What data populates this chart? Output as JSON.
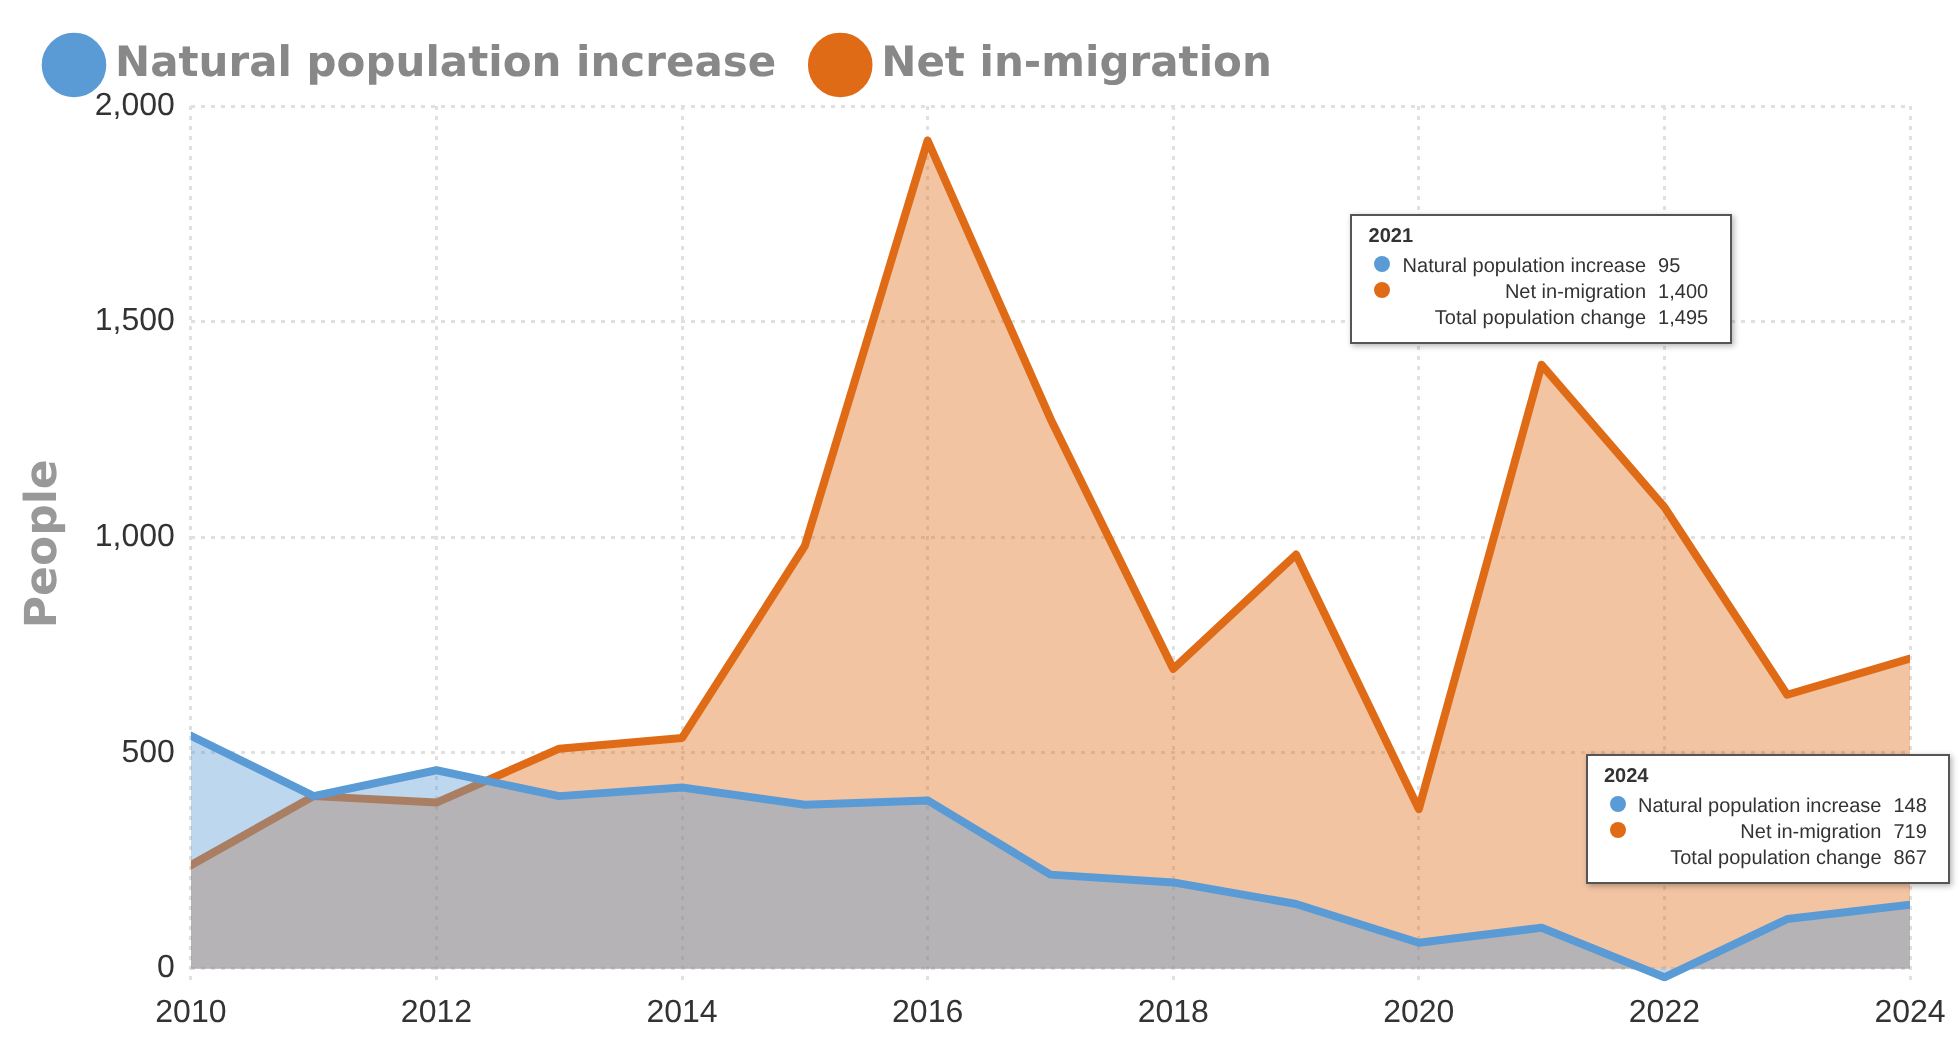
{
  "chart_data": {
    "type": "area",
    "ylabel": "People",
    "x": [
      2010,
      2011,
      2012,
      2013,
      2014,
      2015,
      2016,
      2017,
      2018,
      2019,
      2020,
      2021,
      2022,
      2023,
      2024
    ],
    "series": [
      {
        "name": "Natural population increase",
        "color": "#5b9bd5",
        "values": [
          540,
          400,
          460,
          400,
          420,
          380,
          390,
          218,
          200,
          150,
          60,
          95,
          -20,
          115,
          148
        ]
      },
      {
        "name": "Net in-migration",
        "color": "#e06b17",
        "values": [
          240,
          400,
          385,
          510,
          535,
          980,
          1920,
          1275,
          695,
          960,
          370,
          1400,
          1070,
          635,
          719
        ]
      }
    ],
    "xlim": [
      2010,
      2024
    ],
    "xticks": [
      2010,
      2012,
      2014,
      2016,
      2018,
      2020,
      2022,
      2024
    ],
    "ylim": [
      -30,
      2000
    ],
    "yticks": [
      {
        "value": 0,
        "label": "0"
      },
      {
        "value": 500,
        "label": "500"
      },
      {
        "value": 1000,
        "label": "1,000"
      },
      {
        "value": 1500,
        "label": "1,500"
      },
      {
        "value": 2000,
        "label": "2,000"
      }
    ],
    "grid": true,
    "legend": "top left",
    "marker": "none",
    "line_style": "solid",
    "annotations": [
      {
        "text": "2021\nNatural population increase\t95\nNet in-migration\t1,400\nTotal population change\t1,495",
        "x": 2021,
        "y": 1400
      },
      {
        "text": "2024\nNatural population increase\t148\nNet in-migration\t719\nTotal population change\t867",
        "x": 2024,
        "y": 148
      }
    ]
  }
}
